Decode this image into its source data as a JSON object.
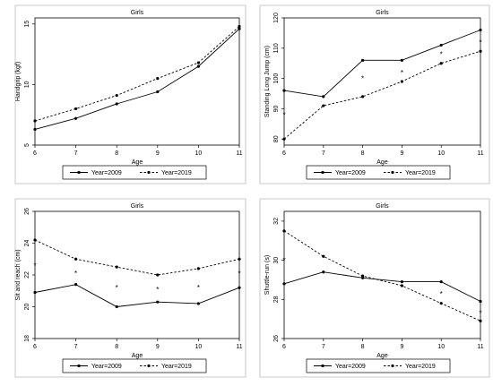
{
  "legend_style": {
    "series1_color": "#000000",
    "series2_color": "#000000",
    "series2_dash": "dashed"
  },
  "chart_data": [
    {
      "type": "line",
      "title": "Girls",
      "xlabel": "Age",
      "ylabel": "Handgrip (kgf)",
      "x": [
        6,
        7,
        8,
        9,
        10,
        11
      ],
      "xticks": [
        6,
        7,
        8,
        9,
        10,
        11
      ],
      "xlim": [
        6,
        11
      ],
      "yticks": [
        5,
        10,
        15
      ],
      "ylim": [
        5,
        15.5
      ],
      "grid": false,
      "legend_position": "bottom",
      "series": [
        {
          "name": "Year=2009",
          "values": [
            6.3,
            7.2,
            8.4,
            9.4,
            11.5,
            14.6
          ]
        },
        {
          "name": "Year=2019",
          "values": [
            7.0,
            8.0,
            9.1,
            10.5,
            11.8,
            14.8
          ]
        }
      ],
      "annotations": []
    },
    {
      "type": "line",
      "title": "Girls",
      "xlabel": "Age",
      "ylabel": "Standing Long Jump (cm)",
      "x": [
        6,
        7,
        8,
        9,
        10,
        11
      ],
      "xticks": [
        6,
        7,
        8,
        9,
        10,
        11
      ],
      "xlim": [
        6,
        11
      ],
      "yticks": [
        80,
        90,
        100,
        110,
        120
      ],
      "ylim": [
        78,
        120
      ],
      "grid": false,
      "legend_position": "bottom",
      "series": [
        {
          "name": "Year=2009",
          "values": [
            96,
            94,
            106,
            106,
            111,
            116
          ]
        },
        {
          "name": "Year=2019",
          "values": [
            80,
            91,
            94,
            99,
            105,
            109
          ]
        }
      ],
      "annotations": [
        {
          "x": 6,
          "y": 88,
          "text": "*"
        },
        {
          "x": 8,
          "y": 100,
          "text": "*"
        },
        {
          "x": 9,
          "y": 102,
          "text": "*"
        },
        {
          "x": 10,
          "y": 108,
          "text": "*"
        },
        {
          "x": 11,
          "y": 112,
          "text": "*"
        }
      ]
    },
    {
      "type": "line",
      "title": "Girls",
      "xlabel": "Age",
      "ylabel": "Sit and reach (cm)",
      "x": [
        6,
        7,
        8,
        9,
        10,
        11
      ],
      "xticks": [
        6,
        7,
        8,
        9,
        10,
        11
      ],
      "xlim": [
        6,
        11
      ],
      "yticks": [
        18,
        20,
        22,
        24,
        26
      ],
      "ylim": [
        18,
        26
      ],
      "grid": false,
      "legend_position": "bottom",
      "series": [
        {
          "name": "Year=2009",
          "values": [
            20.9,
            21.4,
            20.0,
            20.3,
            20.2,
            21.2
          ]
        },
        {
          "name": "Year=2019",
          "values": [
            24.2,
            23.0,
            22.5,
            22.0,
            22.4,
            23.0
          ]
        }
      ],
      "annotations": [
        {
          "x": 6,
          "y": 22.6,
          "text": "*"
        },
        {
          "x": 7,
          "y": 22.1,
          "text": "*"
        },
        {
          "x": 8,
          "y": 21.2,
          "text": "*"
        },
        {
          "x": 9,
          "y": 21.1,
          "text": "*"
        },
        {
          "x": 10,
          "y": 21.2,
          "text": "*"
        },
        {
          "x": 11,
          "y": 22.1,
          "text": "*"
        }
      ]
    },
    {
      "type": "line",
      "title": "Girls",
      "xlabel": "Age",
      "ylabel": "Shuttle-run (s)",
      "x": [
        6,
        7,
        8,
        9,
        10,
        11
      ],
      "xticks": [
        6,
        7,
        8,
        9,
        10,
        11
      ],
      "xlim": [
        6,
        11
      ],
      "yticks": [
        26,
        28,
        30,
        32
      ],
      "ylim": [
        26,
        32.5
      ],
      "grid": false,
      "legend_position": "bottom",
      "series": [
        {
          "name": "Year=2009",
          "values": [
            28.8,
            29.4,
            29.1,
            28.9,
            28.9,
            27.9
          ]
        },
        {
          "name": "Year=2019",
          "values": [
            31.5,
            30.2,
            29.2,
            28.7,
            27.8,
            26.9
          ]
        }
      ],
      "annotations": [
        {
          "x": 6,
          "y": 30.0,
          "text": "*"
        },
        {
          "x": 10,
          "y": 28.3,
          "text": "*"
        },
        {
          "x": 11,
          "y": 27.3,
          "text": "*"
        }
      ]
    }
  ]
}
